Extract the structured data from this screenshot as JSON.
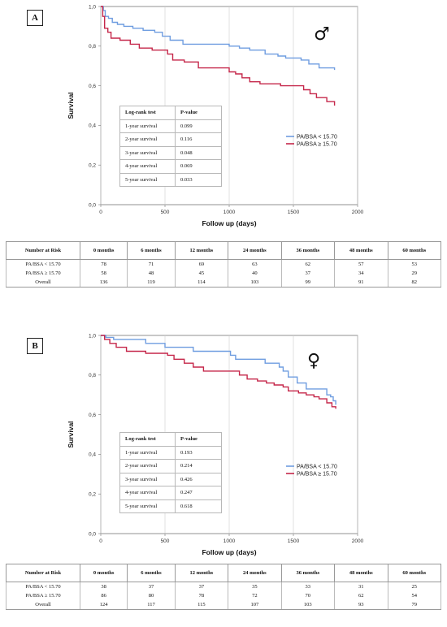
{
  "colors": {
    "blue": "#6f9de0",
    "red": "#c5274a",
    "axis": "#777777",
    "grid": "#cfcfcf"
  },
  "chart_data": [
    {
      "type": "line",
      "panel": "A",
      "symbol": "♂",
      "xlabel": "Follow up (days)",
      "ylabel": "Survival",
      "xlim": [
        0,
        2000
      ],
      "ylim": [
        0.0,
        1.0
      ],
      "xticks": [
        "0",
        "500",
        "1000",
        "1500",
        "2000"
      ],
      "yticks": [
        "0,0",
        "0,2",
        "0,4",
        "0,6",
        "0,8",
        "1,0"
      ],
      "grid": true,
      "legend_position": "right",
      "series": [
        {
          "name": "PA/BSA < 15.70",
          "color": "#6f9de0",
          "x": [
            0,
            20,
            35,
            60,
            90,
            130,
            180,
            250,
            330,
            420,
            480,
            540,
            640,
            800,
            1000,
            1080,
            1160,
            1280,
            1380,
            1440,
            1560,
            1620,
            1700,
            1820
          ],
          "y": [
            1.0,
            0.98,
            0.95,
            0.94,
            0.92,
            0.91,
            0.9,
            0.89,
            0.88,
            0.87,
            0.85,
            0.83,
            0.81,
            0.81,
            0.8,
            0.79,
            0.78,
            0.76,
            0.75,
            0.74,
            0.73,
            0.71,
            0.69,
            0.68
          ]
        },
        {
          "name": "PA/BSA ≥ 15.70",
          "color": "#c5274a",
          "x": [
            0,
            15,
            30,
            55,
            80,
            150,
            230,
            300,
            400,
            520,
            560,
            650,
            760,
            1000,
            1050,
            1100,
            1160,
            1240,
            1400,
            1580,
            1630,
            1680,
            1760,
            1820
          ],
          "y": [
            1.0,
            0.95,
            0.89,
            0.87,
            0.84,
            0.83,
            0.81,
            0.79,
            0.78,
            0.76,
            0.73,
            0.72,
            0.69,
            0.67,
            0.66,
            0.64,
            0.62,
            0.61,
            0.6,
            0.58,
            0.56,
            0.54,
            0.52,
            0.5
          ]
        }
      ]
    },
    {
      "type": "line",
      "panel": "B",
      "symbol": "♀",
      "xlabel": "Follow up (days)",
      "ylabel": "Survival",
      "xlim": [
        0,
        2000
      ],
      "ylim": [
        0.0,
        1.0
      ],
      "xticks": [
        "0",
        "500",
        "1000",
        "1500",
        "2000"
      ],
      "yticks": [
        "0,0",
        "0,2",
        "0,4",
        "0,6",
        "0,8",
        "1,0"
      ],
      "grid": true,
      "legend_position": "right",
      "series": [
        {
          "name": "PA/BSA < 15.70",
          "color": "#6f9de0",
          "x": [
            0,
            40,
            100,
            350,
            500,
            720,
            1010,
            1050,
            1280,
            1390,
            1420,
            1460,
            1530,
            1600,
            1700,
            1760,
            1790,
            1810,
            1830
          ],
          "y": [
            1.0,
            0.99,
            0.98,
            0.96,
            0.94,
            0.92,
            0.9,
            0.88,
            0.86,
            0.84,
            0.82,
            0.79,
            0.76,
            0.73,
            0.73,
            0.7,
            0.69,
            0.67,
            0.65
          ]
        },
        {
          "name": "PA/BSA ≥ 15.70",
          "color": "#c5274a",
          "x": [
            0,
            30,
            70,
            120,
            200,
            350,
            520,
            570,
            650,
            720,
            800,
            1000,
            1080,
            1140,
            1220,
            1290,
            1350,
            1420,
            1460,
            1540,
            1600,
            1660,
            1700,
            1760,
            1800,
            1830
          ],
          "y": [
            1.0,
            0.98,
            0.96,
            0.94,
            0.92,
            0.91,
            0.9,
            0.88,
            0.86,
            0.84,
            0.82,
            0.82,
            0.8,
            0.78,
            0.77,
            0.76,
            0.75,
            0.74,
            0.72,
            0.71,
            0.7,
            0.69,
            0.68,
            0.66,
            0.64,
            0.63
          ]
        }
      ]
    }
  ],
  "panels": [
    {
      "label": "A",
      "legend": [
        "PA/BSA < 15.70",
        "PA/BSA ≥ 15.70"
      ],
      "logrank": {
        "headers": [
          "Log-rank test",
          "P-value"
        ],
        "rows": [
          [
            "1-year survival",
            "0.099"
          ],
          [
            "2-year survival",
            "0.116"
          ],
          [
            "3-year survival",
            "0.048"
          ],
          [
            "4-year survival",
            "0.069"
          ],
          [
            "5-year survival",
            "0.033"
          ]
        ]
      },
      "risk": {
        "headers": [
          "Number at Risk",
          "0 months",
          "6 months",
          "12 months",
          "24 months",
          "36 months",
          "48 months",
          "60 months"
        ],
        "rows": [
          [
            "PA/BSA < 15.70",
            "78",
            "71",
            "69",
            "63",
            "62",
            "57",
            "53"
          ],
          [
            "PA/BSA ≥ 15.70",
            "58",
            "48",
            "45",
            "40",
            "37",
            "34",
            "29"
          ],
          [
            "Overall",
            "136",
            "119",
            "114",
            "103",
            "99",
            "91",
            "82"
          ]
        ]
      }
    },
    {
      "label": "B",
      "legend": [
        "PA/BSA < 15.70",
        "PA/BSA ≥ 15.70"
      ],
      "logrank": {
        "headers": [
          "Log-rank test",
          "P-value"
        ],
        "rows": [
          [
            "1-year survival",
            "0.193"
          ],
          [
            "2-year survival",
            "0.214"
          ],
          [
            "3-year survival",
            "0.426"
          ],
          [
            "4-year survival",
            "0.247"
          ],
          [
            "5-year survival",
            "0.618"
          ]
        ]
      },
      "risk": {
        "headers": [
          "Number at Risk",
          "0 months",
          "6 months",
          "12 months",
          "24 months",
          "36 months",
          "48 months",
          "60 months"
        ],
        "rows": [
          [
            "PA/BSA < 15.70",
            "38",
            "37",
            "37",
            "35",
            "33",
            "31",
            "25"
          ],
          [
            "PA/BSA ≥ 15.70",
            "86",
            "80",
            "78",
            "72",
            "70",
            "62",
            "54"
          ],
          [
            "Overall",
            "124",
            "117",
            "115",
            "107",
            "103",
            "93",
            "79"
          ]
        ]
      }
    }
  ]
}
